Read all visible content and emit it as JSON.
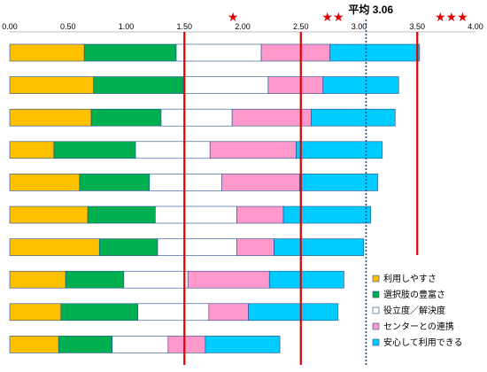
{
  "chart_data": {
    "type": "bar",
    "orientation": "horizontal",
    "stacked": true,
    "xlim": [
      0,
      4.0
    ],
    "x_ticks": [
      "0.00",
      "0.50",
      "1.00",
      "1.50",
      "2.00",
      "2.50",
      "3.00",
      "3.50",
      "4.00"
    ],
    "grid": false,
    "legend_position": "bottom-right",
    "series": [
      {
        "name": "利用しやすさ",
        "color": "#ffc000",
        "values": [
          0.64,
          0.72,
          0.7,
          0.38,
          0.6,
          0.67,
          0.77,
          0.48,
          0.44,
          0.42
        ]
      },
      {
        "name": "選択肢の豊富さ",
        "color": "#00b050",
        "values": [
          0.79,
          0.77,
          0.6,
          0.7,
          0.6,
          0.58,
          0.5,
          0.5,
          0.66,
          0.46
        ]
      },
      {
        "name": "役立度／解決度",
        "color": "#ffffff",
        "values": [
          0.73,
          0.73,
          0.61,
          0.64,
          0.62,
          0.7,
          0.68,
          0.55,
          0.61,
          0.48
        ]
      },
      {
        "name": "センターとの連携",
        "color": "#ff99cc",
        "values": [
          0.59,
          0.47,
          0.68,
          0.74,
          0.67,
          0.4,
          0.32,
          0.7,
          0.34,
          0.32
        ]
      },
      {
        "name": "安心して利用できる",
        "color": "#00ccff",
        "values": [
          0.77,
          0.65,
          0.72,
          0.74,
          0.67,
          0.75,
          0.77,
          0.64,
          0.77,
          0.64
        ]
      }
    ],
    "reference_lines": [
      {
        "value": 1.5,
        "style": "solid",
        "color": "#e00000",
        "stars": ""
      },
      {
        "value": 2.5,
        "style": "solid",
        "color": "#e00000",
        "stars": "★"
      },
      {
        "value": 3.5,
        "style": "solid",
        "color": "#e00000",
        "stars": "★★"
      },
      {
        "value": 3.06,
        "style": "dotted",
        "color": "#1f4e8c",
        "label": "平均 3.06"
      }
    ],
    "stars": [
      {
        "text": "★",
        "x": 1.87
      },
      {
        "text": "★★",
        "x": 2.68
      },
      {
        "text": "★★★",
        "x": 3.65
      }
    ]
  }
}
